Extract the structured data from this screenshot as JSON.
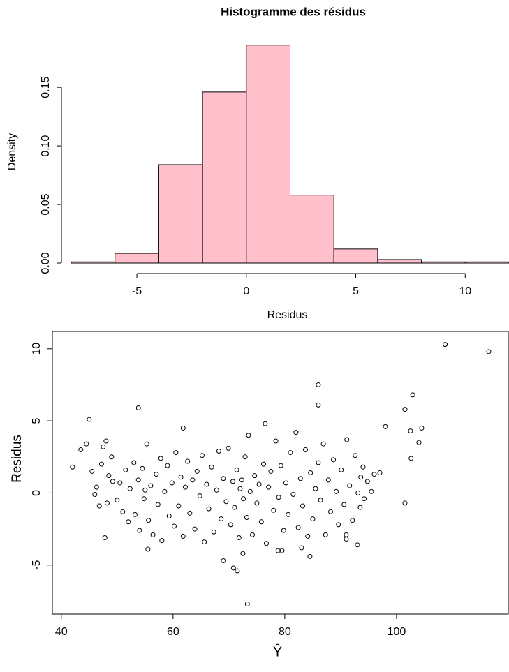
{
  "chart_data": [
    {
      "type": "histogram",
      "title": "Histogramme des résidus",
      "xlabel": "Residus",
      "ylabel": "Density",
      "bins": [
        -8,
        -6,
        -4,
        -2,
        0,
        2,
        4,
        6,
        8,
        10,
        12
      ],
      "values": [
        0.001,
        0.0083,
        0.084,
        0.146,
        0.186,
        0.058,
        0.012,
        0.003,
        0.001,
        0.001
      ],
      "color": "pink",
      "xlim": [
        -8,
        12
      ],
      "ylim": [
        0,
        0.19
      ],
      "xticks": [
        -5,
        0,
        5,
        10
      ],
      "yticks": [
        {
          "value": 0,
          "label": "0.00"
        },
        {
          "value": 0.05,
          "label": "0.05"
        },
        {
          "value": 0.1,
          "label": "0.10"
        },
        {
          "value": 0.15,
          "label": "0.15"
        }
      ]
    },
    {
      "type": "scatter",
      "xlabel": "Ŷ",
      "ylabel": "Residus",
      "color": "#000000",
      "xlim": [
        38.4,
        120
      ],
      "ylim": [
        -8.4,
        11.2
      ],
      "xticks": [
        40,
        60,
        80,
        100
      ],
      "yticks": [
        -5,
        0,
        5,
        10
      ],
      "x": [
        108.7,
        116.5,
        86,
        86,
        53.8,
        45,
        102.9,
        101.5,
        98,
        104.5,
        102.5,
        104,
        102.6,
        101.5,
        61.8,
        76.5,
        73.3,
        71.5,
        70.8,
        69,
        47.8,
        42,
        43.5,
        96,
        97,
        93,
        91,
        91,
        84.5,
        83,
        79.5,
        78.8,
        55.5,
        72.5,
        93.5,
        95.5,
        94,
        44.5,
        45.5,
        46,
        46.3,
        46.8,
        47.2,
        47.5,
        48,
        48.2,
        48.5,
        49,
        49.2,
        50,
        50.5,
        51,
        51.5,
        52,
        52.3,
        53,
        53.2,
        53.8,
        54,
        54.5,
        54.8,
        55,
        55.3,
        55.6,
        56,
        56.4,
        57,
        57.3,
        57.8,
        58,
        58.5,
        59,
        59.3,
        59.8,
        60.2,
        60.5,
        61,
        61.4,
        61.8,
        62.2,
        62.6,
        63,
        63.5,
        63.9,
        64.3,
        64.8,
        65.2,
        65.6,
        66,
        66.4,
        66.9,
        67.3,
        67.8,
        68.2,
        68.6,
        69,
        69.5,
        69.9,
        70.3,
        70.7,
        71,
        71.4,
        71.8,
        72,
        72.3,
        72.6,
        72.9,
        73.2,
        73.5,
        73.8,
        74.2,
        74.6,
        75,
        75.4,
        75.8,
        76.2,
        76.7,
        77.1,
        77.5,
        78,
        78.4,
        78.9,
        79.3,
        79.8,
        80.2,
        80.6,
        81,
        81.5,
        82,
        82.4,
        82.8,
        83.2,
        83.7,
        84.1,
        84.6,
        85,
        85.5,
        86,
        86.4,
        86.9,
        87.3,
        87.8,
        88.2,
        88.7,
        89.2,
        89.6,
        90.1,
        90.6,
        91.1,
        91.6,
        92.1,
        92.6,
        93.1,
        93.6,
        94.2,
        94.8
      ],
      "values": [
        10.3,
        9.8,
        7.5,
        6.1,
        5.9,
        5.1,
        6.8,
        5.8,
        4.6,
        4.5,
        4.3,
        3.5,
        2.4,
        -0.7,
        4.5,
        4.8,
        -7.7,
        -5.4,
        -5.2,
        -4.7,
        -3.1,
        1.8,
        3.0,
        1.3,
        1.4,
        -3.6,
        -3.2,
        -2.9,
        -4.4,
        -3.8,
        -4.0,
        -4.0,
        -3.9,
        -4.2,
        -1.0,
        0.1,
        1.8,
        3.4,
        1.5,
        -0.1,
        0.4,
        -0.9,
        2.0,
        3.2,
        3.6,
        -0.7,
        1.2,
        2.5,
        0.8,
        -0.5,
        0.7,
        -1.3,
        1.6,
        -2.0,
        0.3,
        2.1,
        -1.5,
        0.9,
        -2.6,
        1.7,
        -0.4,
        0.2,
        3.4,
        -1.9,
        0.5,
        -2.9,
        1.3,
        -0.8,
        2.4,
        -3.3,
        0.1,
        1.9,
        -1.6,
        0.7,
        -2.3,
        2.8,
        -0.9,
        1.1,
        -3.0,
        0.4,
        2.2,
        -1.4,
        0.9,
        -2.5,
        1.5,
        -0.2,
        2.6,
        -3.4,
        0.6,
        -1.1,
        1.8,
        -2.7,
        0.2,
        2.9,
        -1.8,
        1.0,
        -0.6,
        3.1,
        -2.2,
        0.8,
        -1.0,
        1.6,
        -3.1,
        0.3,
        0.9,
        -0.4,
        2.5,
        -1.7,
        4.0,
        0.1,
        -2.9,
        1.2,
        -0.7,
        0.6,
        -2.0,
        2.0,
        -3.5,
        0.4,
        1.5,
        -1.2,
        3.6,
        -0.3,
        1.9,
        -2.6,
        0.7,
        -1.5,
        2.8,
        -0.1,
        4.2,
        -2.4,
        1.0,
        -0.9,
        3.0,
        -3.0,
        1.4,
        -1.8,
        0.3,
        2.1,
        -0.5,
        3.4,
        -2.9,
        0.9,
        -1.3,
        2.3,
        0.1,
        -2.2,
        1.6,
        -0.8,
        3.7,
        0.5,
        -1.9,
        2.6,
        0.0,
        1.1,
        -0.4,
        0.8
      ]
    }
  ]
}
